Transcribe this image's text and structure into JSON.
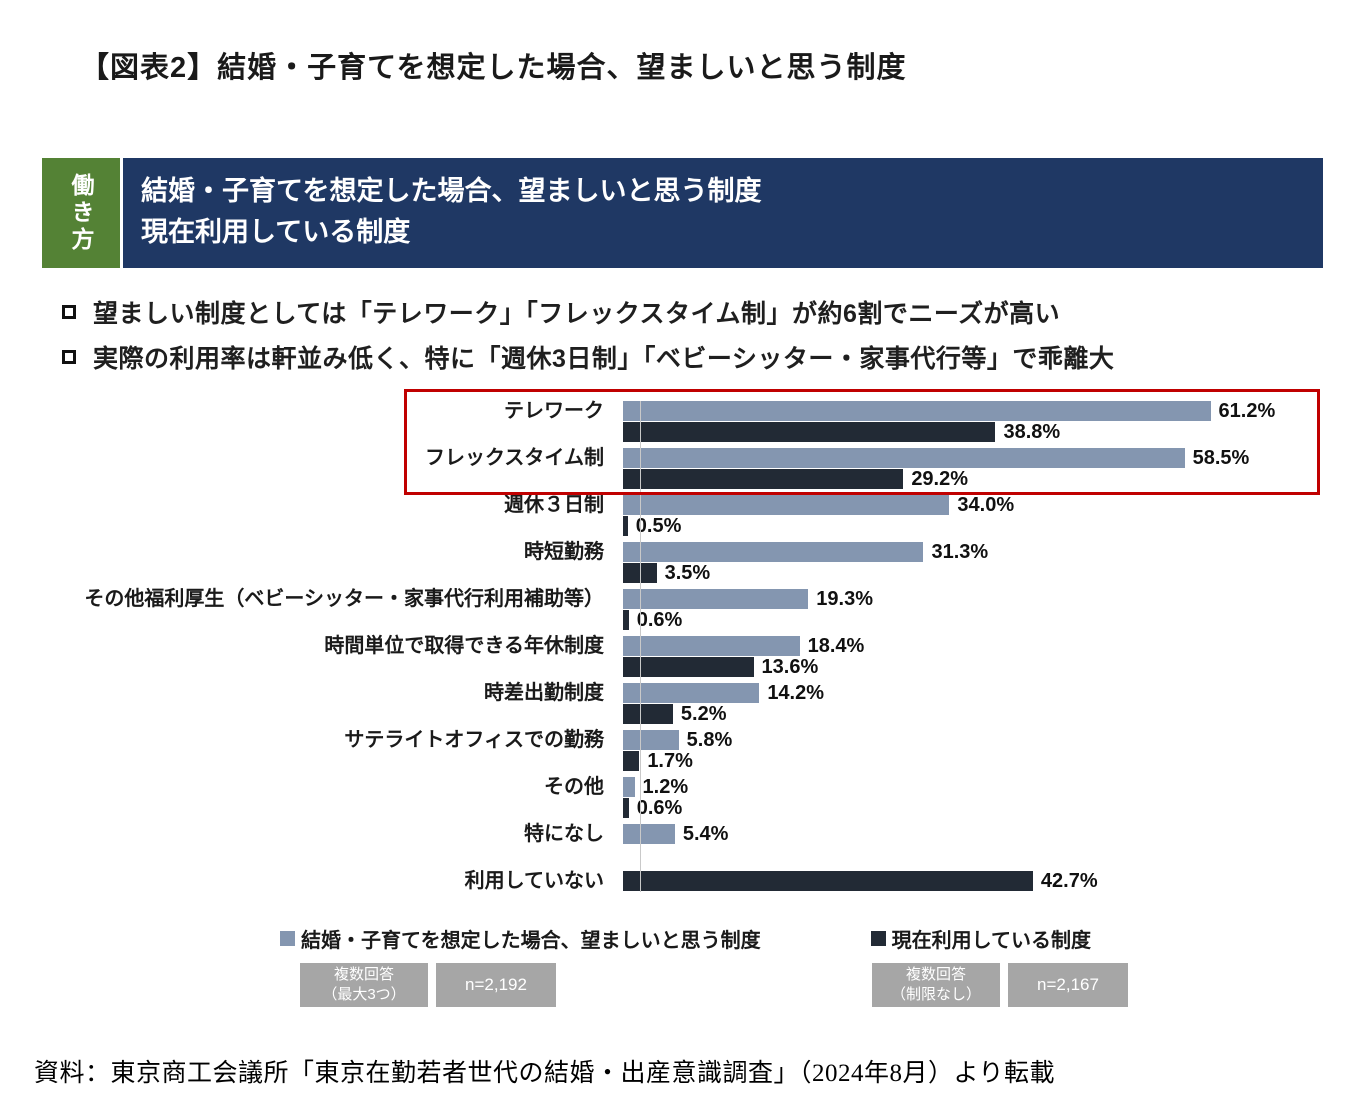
{
  "figure": {
    "title": "【図表2】結婚・子育てを想定した場合、望ましいと思う制度",
    "source": "資料：東京商工会議所「東京在勤若者世代の結婚・出産意識調査」（2024年8月）より転載"
  },
  "header": {
    "tag": "働き方",
    "tag_bg": "#548235",
    "band_bg": "#1f3864",
    "title_line1": "結婚・子育てを想定した場合、望ましいと思う制度",
    "title_line2": "現在利用している制度"
  },
  "summary_bullets": [
    "望ましい制度としては「テレワーク」「フレックスタイム制」が約6割でニーズが高い",
    "実際の利用率は軒並み低く、特に「週休3日制」「ベビーシッター・家事代行等」で乖離大"
  ],
  "chart_data": {
    "type": "bar",
    "orientation": "horizontal",
    "title": "結婚・子育てを想定した場合、望ましいと思う制度／現在利用している制度",
    "xlabel": "",
    "ylabel": "",
    "unit": "%",
    "xlim": [
      0,
      65
    ],
    "grid": false,
    "legend_position": "bottom",
    "categories": [
      "テレワーク",
      "フレックスタイム制",
      "週休３日制",
      "時短勤務",
      "その他福利厚生（ベビーシッター・家事代行利用補助等）",
      "時間単位で取得できる年休制度",
      "時差出勤制度",
      "サテライトオフィスでの勤務",
      "その他",
      "特になし",
      "利用していない"
    ],
    "series": [
      {
        "name": "結婚・子育てを想定した場合、望ましいと思う制度",
        "color": "#8496b0",
        "values": [
          61.2,
          58.5,
          34.0,
          31.3,
          19.3,
          18.4,
          14.2,
          5.8,
          1.2,
          5.4,
          null
        ]
      },
      {
        "name": "現在利用している制度",
        "color": "#222a35",
        "values": [
          38.8,
          29.2,
          0.5,
          3.5,
          0.6,
          13.6,
          5.2,
          1.7,
          0.6,
          null,
          42.7
        ]
      }
    ],
    "highlight": {
      "categories": [
        "テレワーク",
        "フレックスタイム制"
      ],
      "row_indexes": [
        0,
        1
      ],
      "border_color": "#c00000"
    }
  },
  "legend": {
    "items": [
      {
        "label": "結婚・子育てを想定した場合、望ましいと思う制度",
        "color": "#8496b0",
        "note": "複数回答",
        "note2": "（最大3つ）",
        "n": "n=2,192"
      },
      {
        "label": "現在利用している制度",
        "color": "#222a35",
        "note": "複数回答",
        "note2": "（制限なし）",
        "n": "n=2,167"
      }
    ]
  }
}
